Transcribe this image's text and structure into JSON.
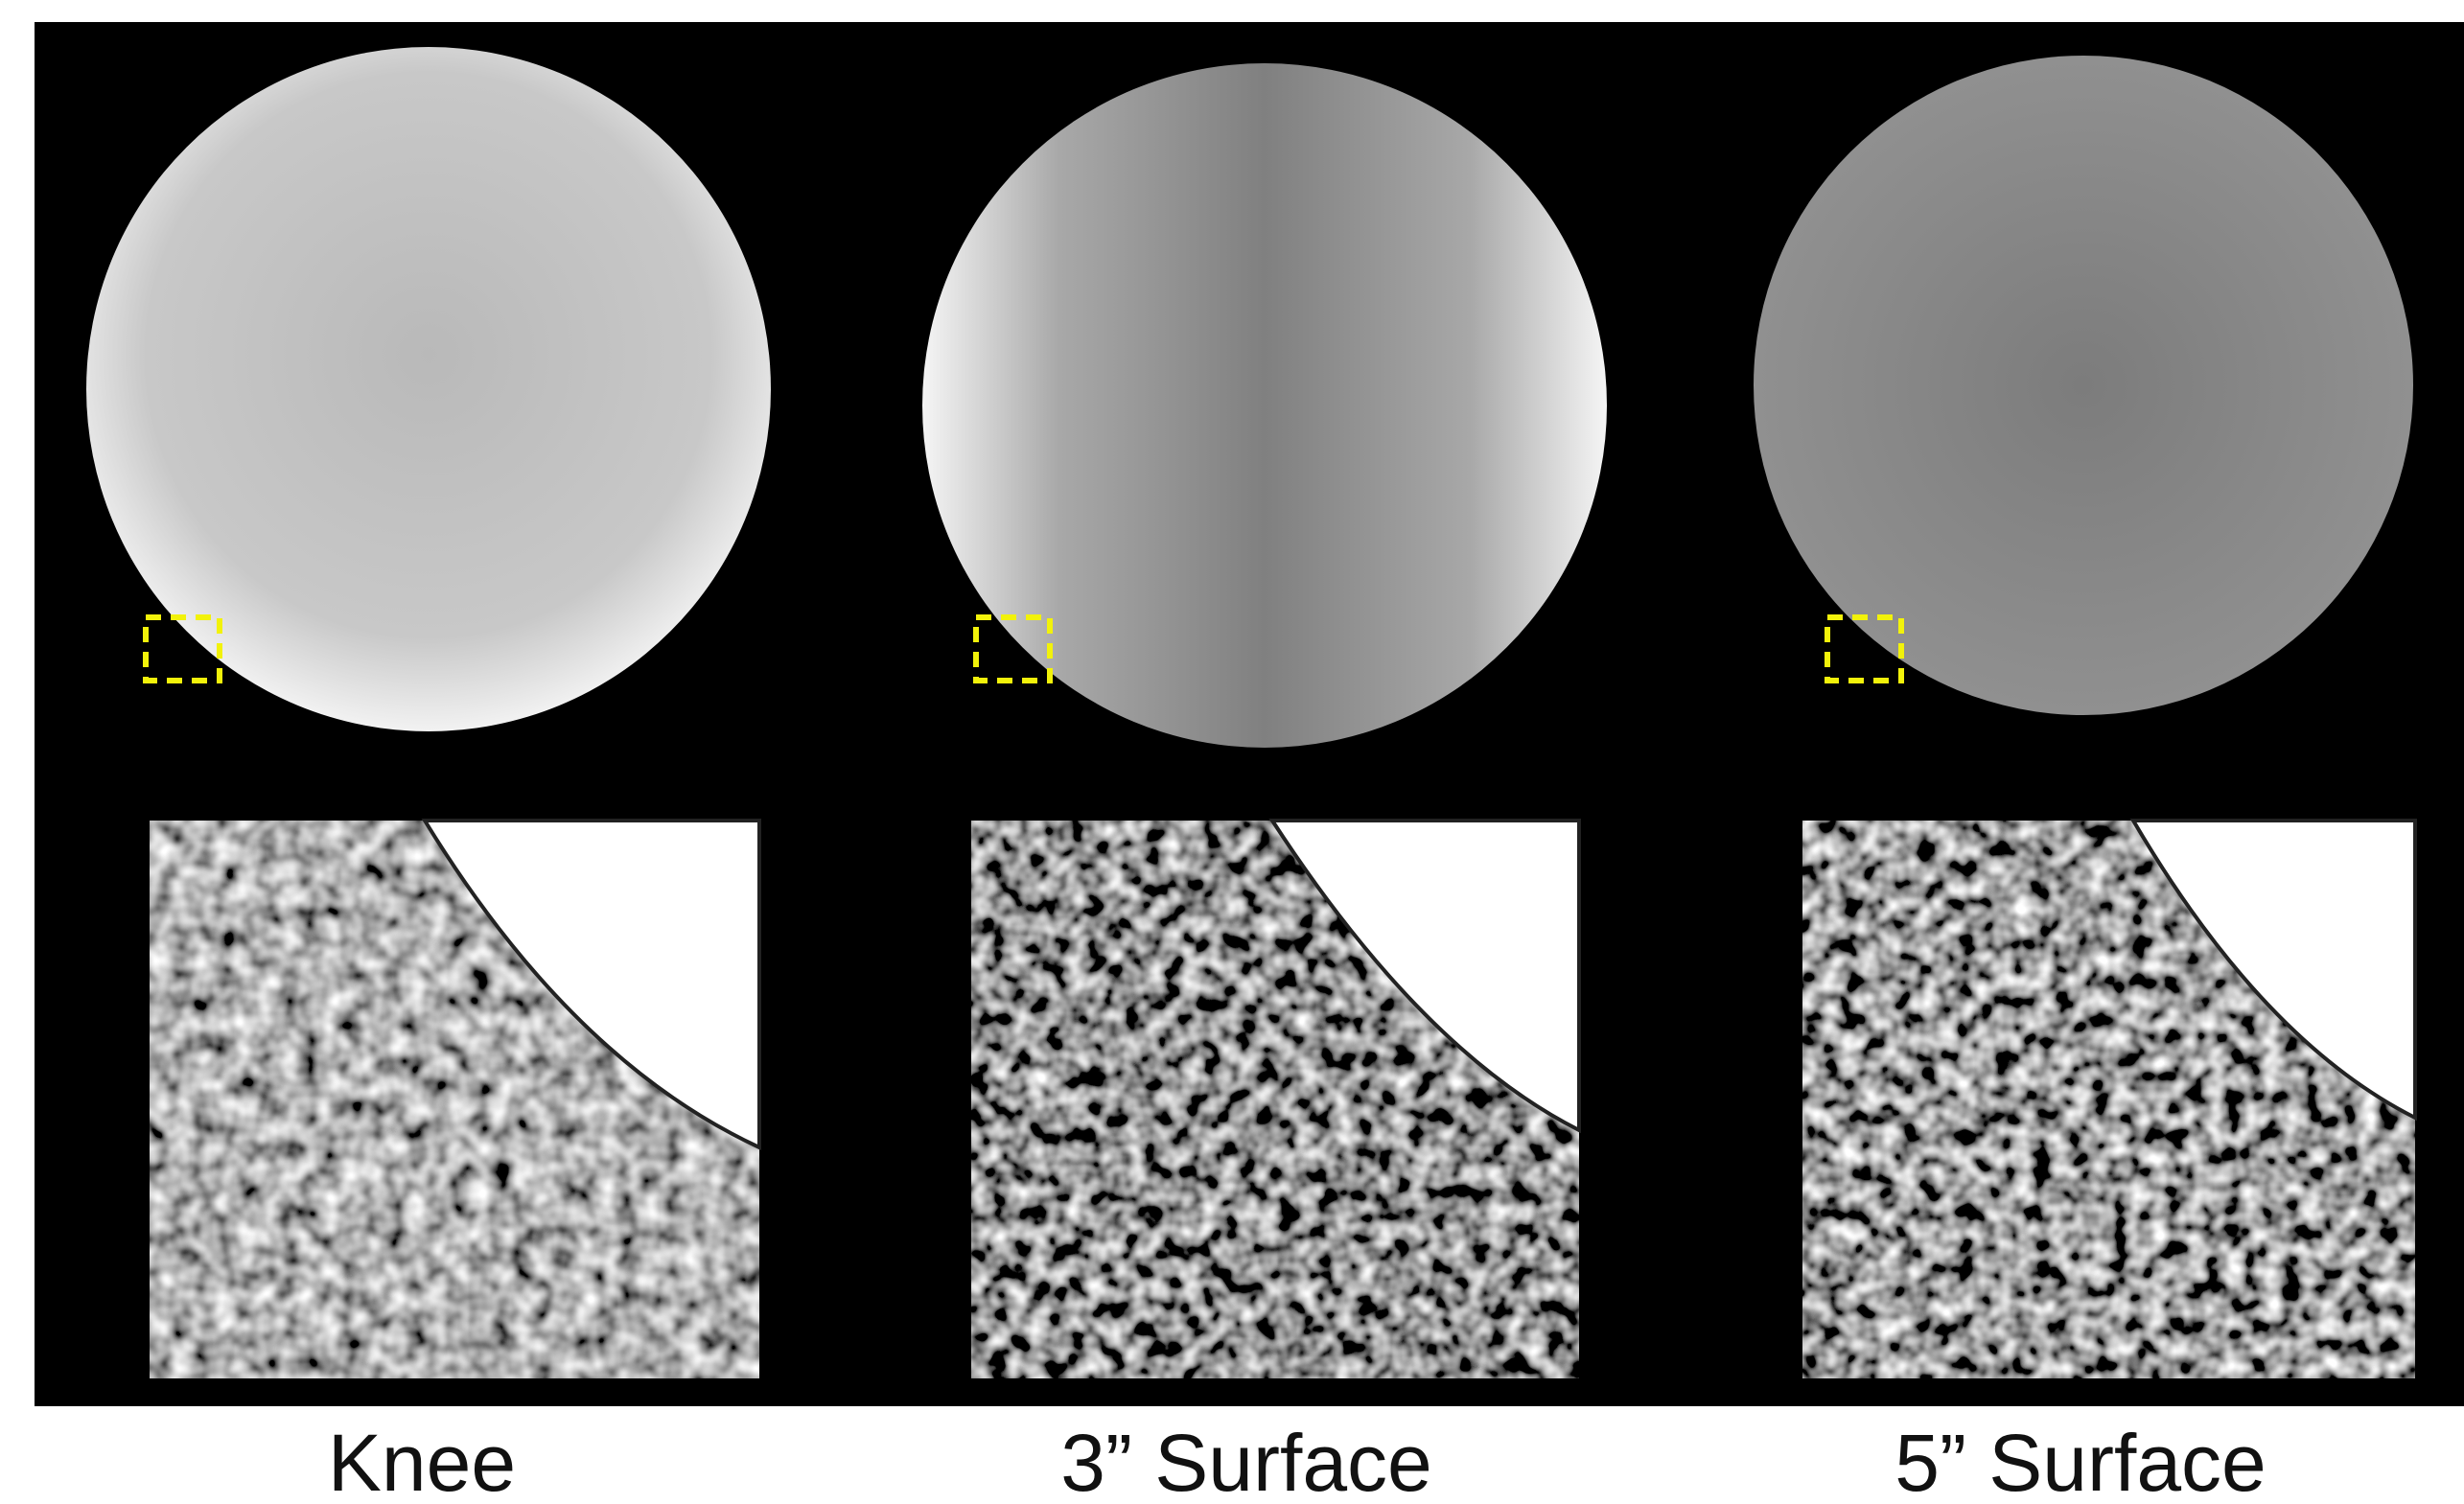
{
  "panels": [
    {
      "label": "Knee"
    },
    {
      "label": "3” Surface"
    },
    {
      "label": "5” Surface"
    }
  ]
}
